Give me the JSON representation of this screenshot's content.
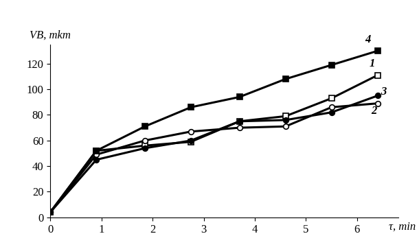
{
  "chart_data": {
    "type": "line",
    "x_label": "τ, min",
    "y_label": "VB, mkm",
    "xlim": [
      0,
      6.8
    ],
    "xticks": [
      0,
      1,
      2,
      3,
      4,
      5,
      6
    ],
    "ylim": [
      0,
      135
    ],
    "yticks": [
      0,
      20,
      40,
      60,
      80,
      100,
      120
    ],
    "grid": false,
    "series": [
      {
        "name": "1",
        "color": "#000000",
        "marker": "square-open",
        "line_style": "solid",
        "x": [
          0,
          0.9,
          1.85,
          2.75,
          3.7,
          4.6,
          5.5,
          6.4
        ],
        "values": [
          4,
          52,
          56,
          59,
          75,
          79,
          93,
          111
        ]
      },
      {
        "name": "2",
        "color": "#000000",
        "marker": "circle-open",
        "line_style": "solid",
        "x": [
          0,
          0.9,
          1.85,
          2.75,
          3.7,
          4.6,
          5.5,
          6.4
        ],
        "values": [
          4,
          49,
          60,
          67,
          70,
          71,
          86,
          89
        ]
      },
      {
        "name": "3",
        "color": "#000000",
        "marker": "circle",
        "line_style": "solid",
        "x": [
          0,
          0.9,
          1.85,
          2.75,
          3.7,
          4.6,
          5.5,
          6.4
        ],
        "values": [
          4,
          45,
          54,
          60,
          75,
          76,
          82,
          95
        ]
      },
      {
        "name": "4",
        "color": "#000000",
        "marker": "square",
        "line_style": "solid",
        "x": [
          0,
          0.9,
          1.85,
          2.75,
          3.7,
          4.6,
          5.5,
          6.4
        ],
        "values": [
          4,
          52,
          71,
          86,
          94,
          108,
          119,
          130
        ]
      }
    ]
  }
}
